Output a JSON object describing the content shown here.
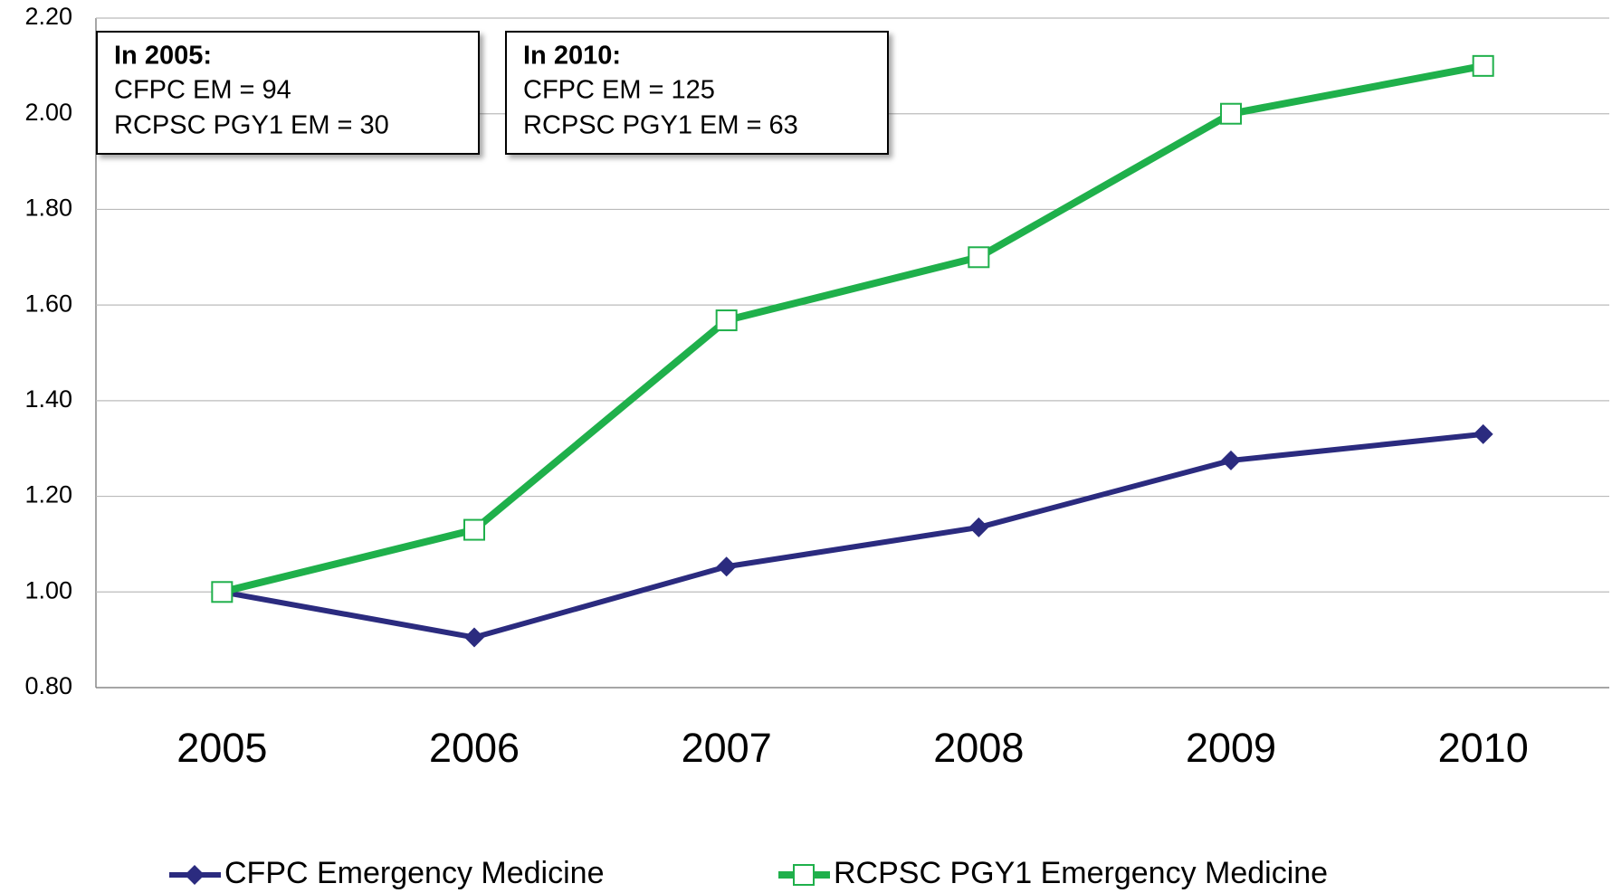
{
  "chart_data": {
    "type": "line",
    "categories": [
      "2005",
      "2006",
      "2007",
      "2008",
      "2009",
      "2010"
    ],
    "series": [
      {
        "name": "CFPC Emergency Medicine",
        "color": "#2b2b7f",
        "marker": "diamond",
        "values": [
          1.0,
          0.905,
          1.053,
          1.135,
          1.275,
          1.33
        ]
      },
      {
        "name": "RCPSC PGY1 Emergency Medicine",
        "color": "#1fb04b",
        "marker": "square",
        "values": [
          1.0,
          1.13,
          1.568,
          1.7,
          2.0,
          2.1
        ]
      }
    ],
    "ylim": [
      0.8,
      2.2
    ],
    "yticks": [
      {
        "value": 0.8,
        "label": "0.80"
      },
      {
        "value": 1.0,
        "label": "1.00"
      },
      {
        "value": 1.2,
        "label": "1.20"
      },
      {
        "value": 1.4,
        "label": "1.40"
      },
      {
        "value": 1.6,
        "label": "1.60"
      },
      {
        "value": 1.8,
        "label": "1.80"
      },
      {
        "value": 2.0,
        "label": "2.00"
      },
      {
        "value": 2.2,
        "label": "2.20"
      }
    ],
    "grid": true,
    "legend": "bottom",
    "annotations": [
      {
        "title": "In 2005:",
        "lines": [
          "CFPC EM = 94",
          "RCPSC PGY1 EM = 30"
        ]
      },
      {
        "title": "In 2010:",
        "lines": [
          "CFPC EM = 125",
          "RCPSC PGY1 EM = 63"
        ]
      }
    ]
  }
}
